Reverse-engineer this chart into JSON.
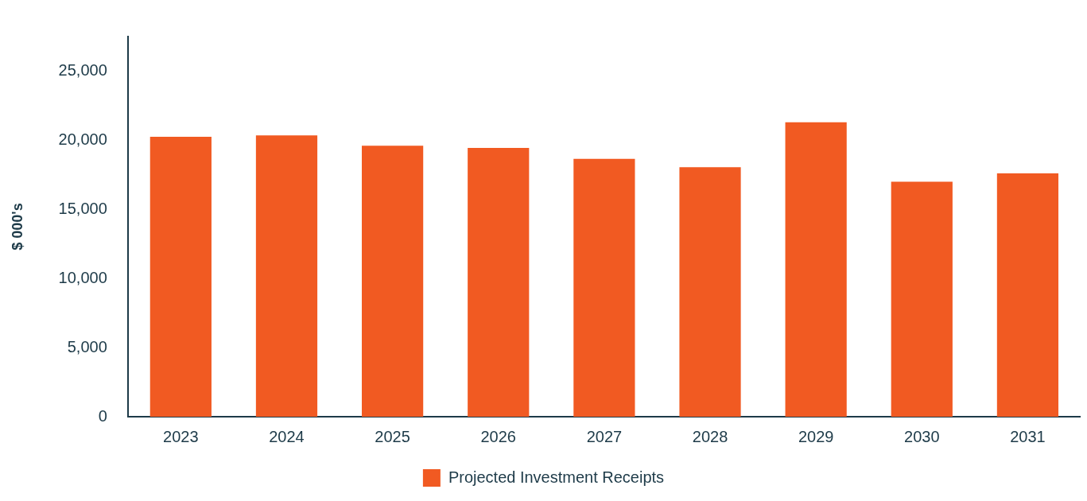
{
  "chart_data": {
    "type": "bar",
    "ylabel": "$ 000's",
    "categories": [
      "2023",
      "2024",
      "2025",
      "2026",
      "2027",
      "2028",
      "2029",
      "2030",
      "2031"
    ],
    "series": [
      {
        "name": "Projected Investment Receipts",
        "color": "#f15a22",
        "values": [
          20250,
          20350,
          19600,
          19450,
          18650,
          18050,
          21300,
          17000,
          17600
        ]
      }
    ],
    "ylim": [
      0,
      27500
    ],
    "yticks": [
      0,
      {
        "value": 5000,
        "label": "5,000"
      },
      {
        "value": 10000,
        "label": "10,000"
      },
      {
        "value": 15000,
        "label": "15,000"
      },
      {
        "value": 20000,
        "label": "20,000"
      },
      {
        "value": 25000,
        "label": "25,000"
      }
    ],
    "grid": false,
    "legend": "bottom"
  }
}
